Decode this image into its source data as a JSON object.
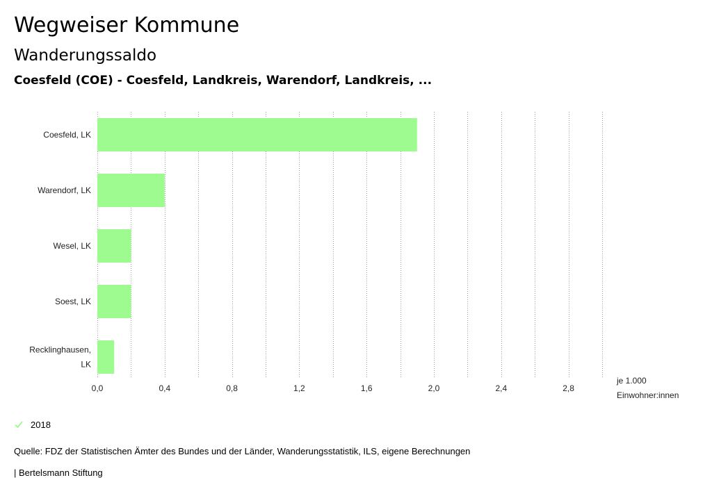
{
  "header": {
    "title": "Wegweiser Kommune",
    "subtitle": "Wanderungssaldo",
    "region": "Coesfeld (COE) - Coesfeld, Landkreis, Warendorf, Landkreis, ..."
  },
  "chart_data": {
    "type": "bar",
    "orientation": "horizontal",
    "categories": [
      "Coesfeld, LK",
      "Warendorf, LK",
      "Wesel, LK",
      "Soest, LK",
      "Recklinghausen, LK"
    ],
    "series": [
      {
        "name": "2018",
        "values": [
          1.9,
          0.4,
          0.2,
          0.2,
          0.1
        ]
      }
    ],
    "xlim": [
      0,
      3.0
    ],
    "xticks": [
      "0,0",
      "0,4",
      "0,8",
      "1,2",
      "1,6",
      "2,0",
      "2,4",
      "2,8"
    ],
    "xlabel": [
      "je 1.000",
      "Einwohner:innen"
    ],
    "grid": "vertical dotted",
    "legend_placement": "bottom-left",
    "bar_color": "#9efb8f"
  },
  "legend": {
    "label": "2018",
    "icon": "check-icon",
    "color": "#9efb8f"
  },
  "footer": {
    "source": "Quelle: FDZ der Statistischen Ämter des Bundes und der Länder, Wanderungsstatistik, ILS, eigene Berechnungen",
    "credit": "| Bertelsmann Stiftung"
  }
}
